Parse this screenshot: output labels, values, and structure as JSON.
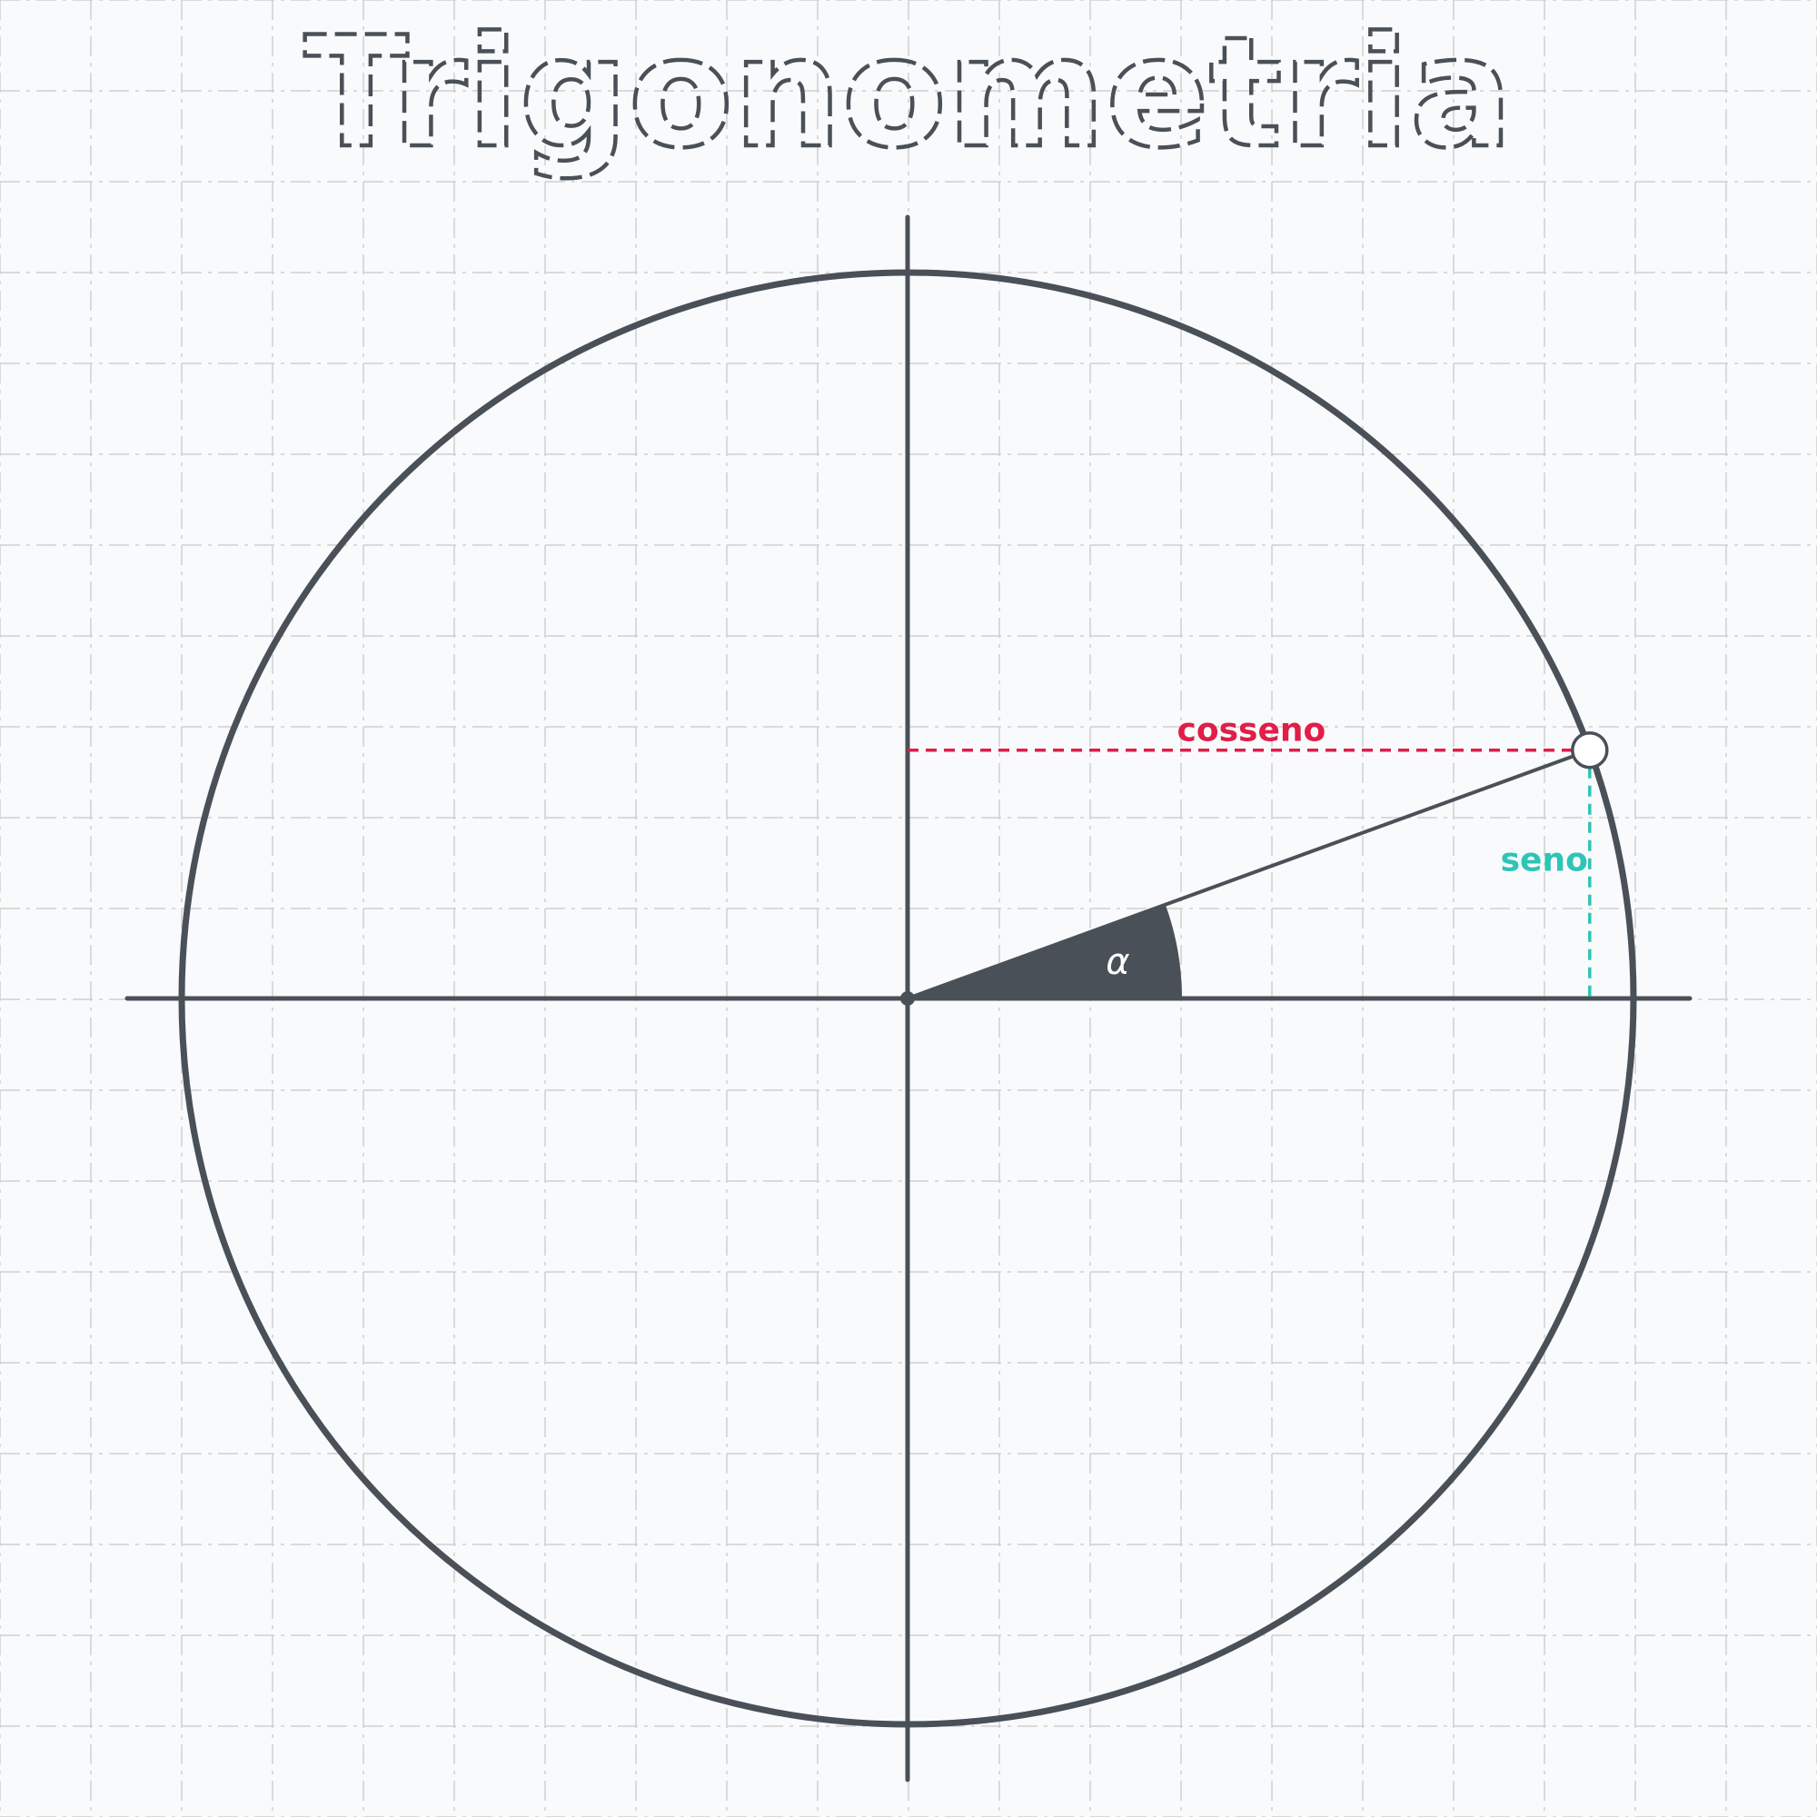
{
  "diagram": {
    "title": "Trigonometria",
    "labels": {
      "cosine": "cosseno",
      "sine": "seno",
      "angle": "α"
    },
    "angle_degrees": 20,
    "colors": {
      "background": "#f8fafc",
      "ink": "#495057",
      "cosine": "#e11d48",
      "sine": "#2ec4b6",
      "grid": "#cfcfcf",
      "point_fill": "#ffffff",
      "angle_label": "#ffffff"
    }
  }
}
